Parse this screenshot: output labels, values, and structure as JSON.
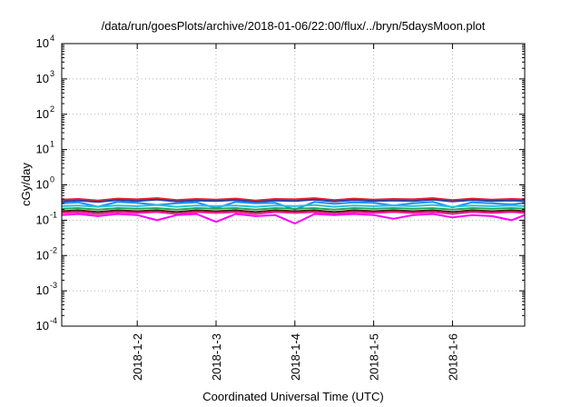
{
  "chart_data": {
    "type": "line",
    "title": "/data/run/goesPlots/archive/2018-01-06/22:00/flux/../bryn/5daysMoon.plot",
    "xlabel": "Coordinated Universal Time (UTC)",
    "ylabel": "cGy/day",
    "yscale": "log",
    "ylim": [
      0.0001,
      10000
    ],
    "xlim": [
      "2018-01-01 01:00",
      "2018-01-06 22:00"
    ],
    "grid": true,
    "y_ticks": [
      {
        "base": "10",
        "exp": "-4",
        "value": 0.0001
      },
      {
        "base": "10",
        "exp": "-3",
        "value": 0.001
      },
      {
        "base": "10",
        "exp": "-2",
        "value": 0.01
      },
      {
        "base": "10",
        "exp": "-1",
        "value": 0.1
      },
      {
        "base": "10",
        "exp": "0",
        "value": 1
      },
      {
        "base": "10",
        "exp": "1",
        "value": 10
      },
      {
        "base": "10",
        "exp": "2",
        "value": 100
      },
      {
        "base": "10",
        "exp": "3",
        "value": 1000
      },
      {
        "base": "10",
        "exp": "4",
        "value": 10000
      }
    ],
    "x_ticks": [
      {
        "label": "2018-1-2",
        "value": "2018-01-02 00:00"
      },
      {
        "label": "2018-1-3",
        "value": "2018-01-03 00:00"
      },
      {
        "label": "2018-1-4",
        "value": "2018-01-04 00:00"
      },
      {
        "label": "2018-1-5",
        "value": "2018-01-05 00:00"
      },
      {
        "label": "2018-1-6",
        "value": "2018-01-06 00:00"
      }
    ],
    "x": [
      "2018-01-01 01:00",
      "2018-01-01 06:00",
      "2018-01-01 12:00",
      "2018-01-01 18:00",
      "2018-01-02 00:00",
      "2018-01-02 06:00",
      "2018-01-02 12:00",
      "2018-01-02 18:00",
      "2018-01-03 00:00",
      "2018-01-03 06:00",
      "2018-01-03 12:00",
      "2018-01-03 18:00",
      "2018-01-04 00:00",
      "2018-01-04 06:00",
      "2018-01-04 12:00",
      "2018-01-04 18:00",
      "2018-01-05 00:00",
      "2018-01-05 06:00",
      "2018-01-05 12:00",
      "2018-01-05 18:00",
      "2018-01-06 00:00",
      "2018-01-06 06:00",
      "2018-01-06 12:00",
      "2018-01-06 18:00",
      "2018-01-06 22:00"
    ],
    "series": [
      {
        "color": "#e8202a",
        "values": [
          0.38,
          0.4,
          0.36,
          0.41,
          0.39,
          0.42,
          0.37,
          0.4,
          0.38,
          0.41,
          0.36,
          0.4,
          0.39,
          0.42,
          0.37,
          0.41,
          0.38,
          0.4,
          0.39,
          0.42,
          0.37,
          0.41,
          0.38,
          0.4,
          0.39
        ]
      },
      {
        "color": "#2f3f9e",
        "values": [
          0.34,
          0.36,
          0.33,
          0.37,
          0.35,
          0.38,
          0.34,
          0.36,
          0.35,
          0.37,
          0.33,
          0.36,
          0.35,
          0.38,
          0.34,
          0.37,
          0.35,
          0.36,
          0.35,
          0.38,
          0.34,
          0.37,
          0.35,
          0.36,
          0.35
        ]
      },
      {
        "color": "#1e8fff",
        "values": [
          0.3,
          0.32,
          0.24,
          0.33,
          0.31,
          0.27,
          0.3,
          0.32,
          0.22,
          0.33,
          0.3,
          0.31,
          0.2,
          0.33,
          0.29,
          0.32,
          0.31,
          0.26,
          0.3,
          0.33,
          0.23,
          0.32,
          0.3,
          0.28,
          0.31
        ]
      },
      {
        "color": "#27c3d4",
        "values": [
          0.25,
          0.26,
          0.24,
          0.26,
          0.25,
          0.27,
          0.24,
          0.26,
          0.25,
          0.26,
          0.24,
          0.26,
          0.25,
          0.27,
          0.24,
          0.26,
          0.25,
          0.26,
          0.25,
          0.27,
          0.24,
          0.26,
          0.25,
          0.26,
          0.25
        ]
      },
      {
        "color": "#1ca65a",
        "values": [
          0.21,
          0.22,
          0.2,
          0.22,
          0.21,
          0.22,
          0.2,
          0.22,
          0.21,
          0.22,
          0.2,
          0.22,
          0.21,
          0.22,
          0.2,
          0.22,
          0.21,
          0.22,
          0.21,
          0.22,
          0.2,
          0.22,
          0.21,
          0.22,
          0.21
        ]
      },
      {
        "color": "#4b1e12",
        "values": [
          0.18,
          0.19,
          0.17,
          0.19,
          0.18,
          0.19,
          0.17,
          0.19,
          0.18,
          0.19,
          0.17,
          0.19,
          0.18,
          0.19,
          0.17,
          0.19,
          0.18,
          0.19,
          0.18,
          0.19,
          0.17,
          0.19,
          0.18,
          0.19,
          0.18
        ]
      },
      {
        "color": "#ee1f8c",
        "values": [
          0.16,
          0.17,
          0.15,
          0.17,
          0.16,
          0.17,
          0.15,
          0.17,
          0.16,
          0.17,
          0.15,
          0.17,
          0.16,
          0.17,
          0.15,
          0.17,
          0.16,
          0.17,
          0.16,
          0.17,
          0.15,
          0.17,
          0.16,
          0.17,
          0.16
        ]
      },
      {
        "color": "#ff00ff",
        "values": [
          0.14,
          0.15,
          0.13,
          0.15,
          0.14,
          0.1,
          0.14,
          0.15,
          0.09,
          0.15,
          0.13,
          0.14,
          0.08,
          0.15,
          0.14,
          0.15,
          0.14,
          0.11,
          0.14,
          0.15,
          0.12,
          0.14,
          0.13,
          0.1,
          0.14
        ]
      }
    ]
  }
}
